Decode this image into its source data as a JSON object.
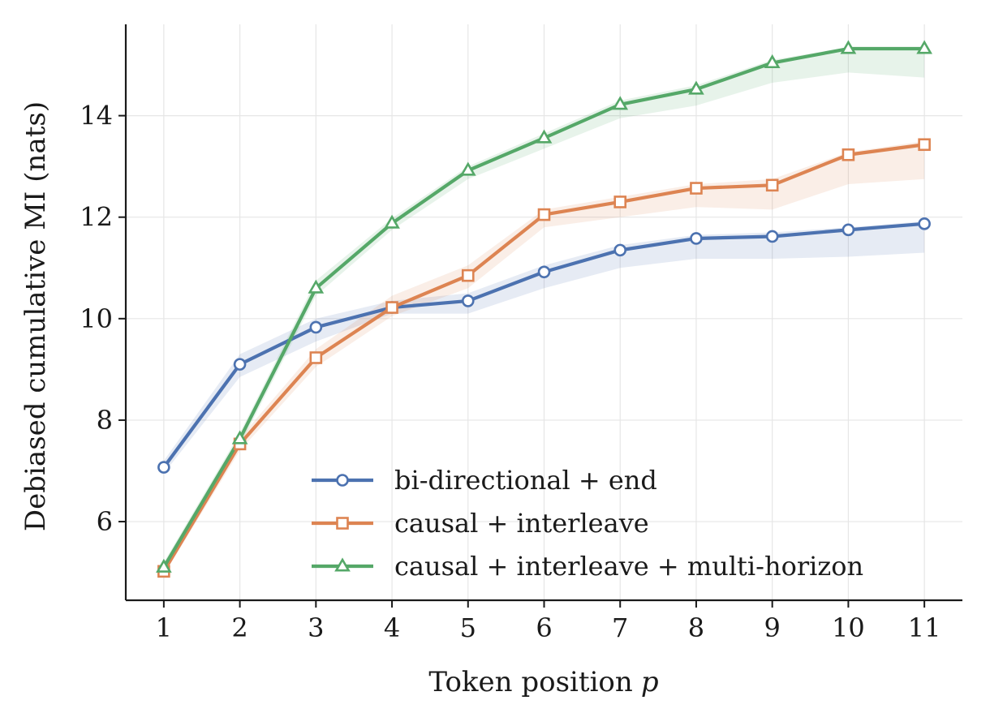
{
  "chart_data": {
    "type": "line",
    "title": "",
    "xlabel": "Token position",
    "xlabel_var": "p",
    "ylabel": "Debiased cumulative MI (nats)",
    "x": [
      1,
      2,
      3,
      4,
      5,
      6,
      7,
      8,
      9,
      10,
      11
    ],
    "xlim": [
      0.5,
      11.5
    ],
    "ylim": [
      4.45,
      15.8
    ],
    "xticks": [
      "1",
      "2",
      "3",
      "4",
      "5",
      "6",
      "7",
      "8",
      "9",
      "10",
      "11"
    ],
    "yticks": [
      6,
      8,
      10,
      12,
      14
    ],
    "grid": true,
    "legend_position": "lower-right",
    "series": [
      {
        "name": "bi-directional + end",
        "color": "#4c72b0",
        "marker": "circle",
        "values": [
          7.07,
          9.1,
          9.83,
          10.22,
          10.35,
          10.92,
          11.35,
          11.58,
          11.62,
          11.75,
          11.87
        ],
        "band_low": [
          6.95,
          8.85,
          9.55,
          10.1,
          10.1,
          10.6,
          11.0,
          11.18,
          11.18,
          11.22,
          11.3
        ],
        "band_high": [
          7.2,
          9.3,
          10.0,
          10.35,
          10.5,
          11.05,
          11.45,
          11.65,
          11.7,
          11.8,
          11.92
        ]
      },
      {
        "name": "causal + interleave",
        "color": "#dd8452",
        "marker": "square",
        "values": [
          5.02,
          7.53,
          9.23,
          10.22,
          10.85,
          12.05,
          12.3,
          12.57,
          12.63,
          13.23,
          13.43
        ],
        "band_low": [
          4.95,
          7.4,
          9.05,
          10.05,
          10.6,
          11.8,
          12.0,
          12.2,
          12.15,
          12.65,
          12.75
        ],
        "band_high": [
          5.15,
          7.65,
          9.4,
          10.45,
          11.05,
          12.15,
          12.4,
          12.65,
          12.75,
          13.28,
          13.5
        ]
      },
      {
        "name": "causal + interleave + multi-horizon",
        "color": "#55a868",
        "marker": "triangle",
        "values": [
          5.1,
          7.63,
          10.6,
          11.88,
          12.92,
          13.56,
          14.22,
          14.52,
          15.04,
          15.32,
          15.32
        ],
        "band_low": [
          4.98,
          7.5,
          10.45,
          11.75,
          12.75,
          13.35,
          13.95,
          14.2,
          14.65,
          14.85,
          14.75
        ],
        "band_high": [
          5.2,
          7.75,
          10.75,
          11.98,
          13.0,
          13.65,
          14.3,
          14.6,
          15.1,
          15.35,
          15.35
        ]
      }
    ]
  }
}
